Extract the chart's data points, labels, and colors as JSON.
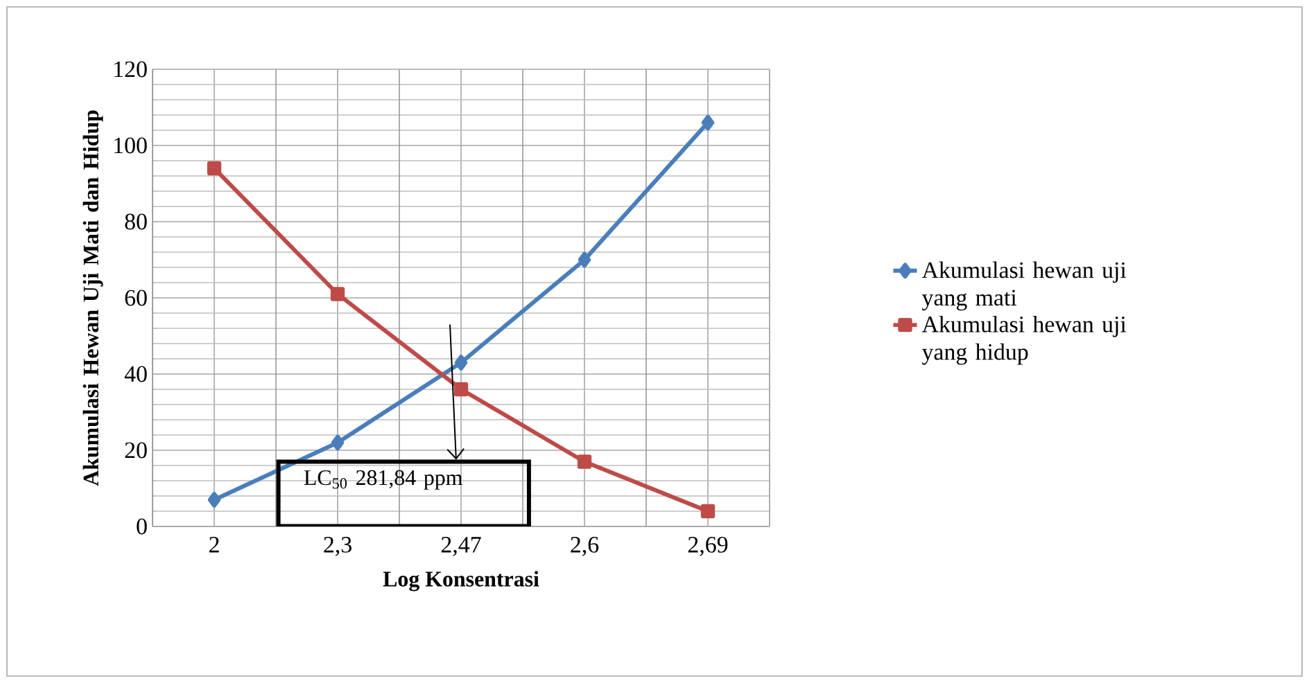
{
  "chart_data": {
    "type": "line",
    "xlabel": "Log Konsentrasi",
    "ylabel": "Akumulasi Hewan Uji Mati dan Hidup",
    "categories": [
      "2",
      "2,3",
      "2,47",
      "2,6",
      "2,69"
    ],
    "series": [
      {
        "name": "Akumulasi hewan uji yang mati",
        "color": "#4a7ebb",
        "marker": "diamond",
        "values": [
          7,
          22,
          43,
          70,
          106
        ]
      },
      {
        "name": "Akumulasi hewan uji yang hidup",
        "color": "#be4b48",
        "marker": "square",
        "values": [
          94,
          61,
          36,
          17,
          4
        ]
      }
    ],
    "ylim": [
      0,
      120
    ],
    "yticks": [
      0,
      20,
      40,
      60,
      80,
      100,
      120
    ],
    "grid": true,
    "legend": "right",
    "annotations": [
      "LC$_{50}$ 281,84 ppm"
    ]
  }
}
